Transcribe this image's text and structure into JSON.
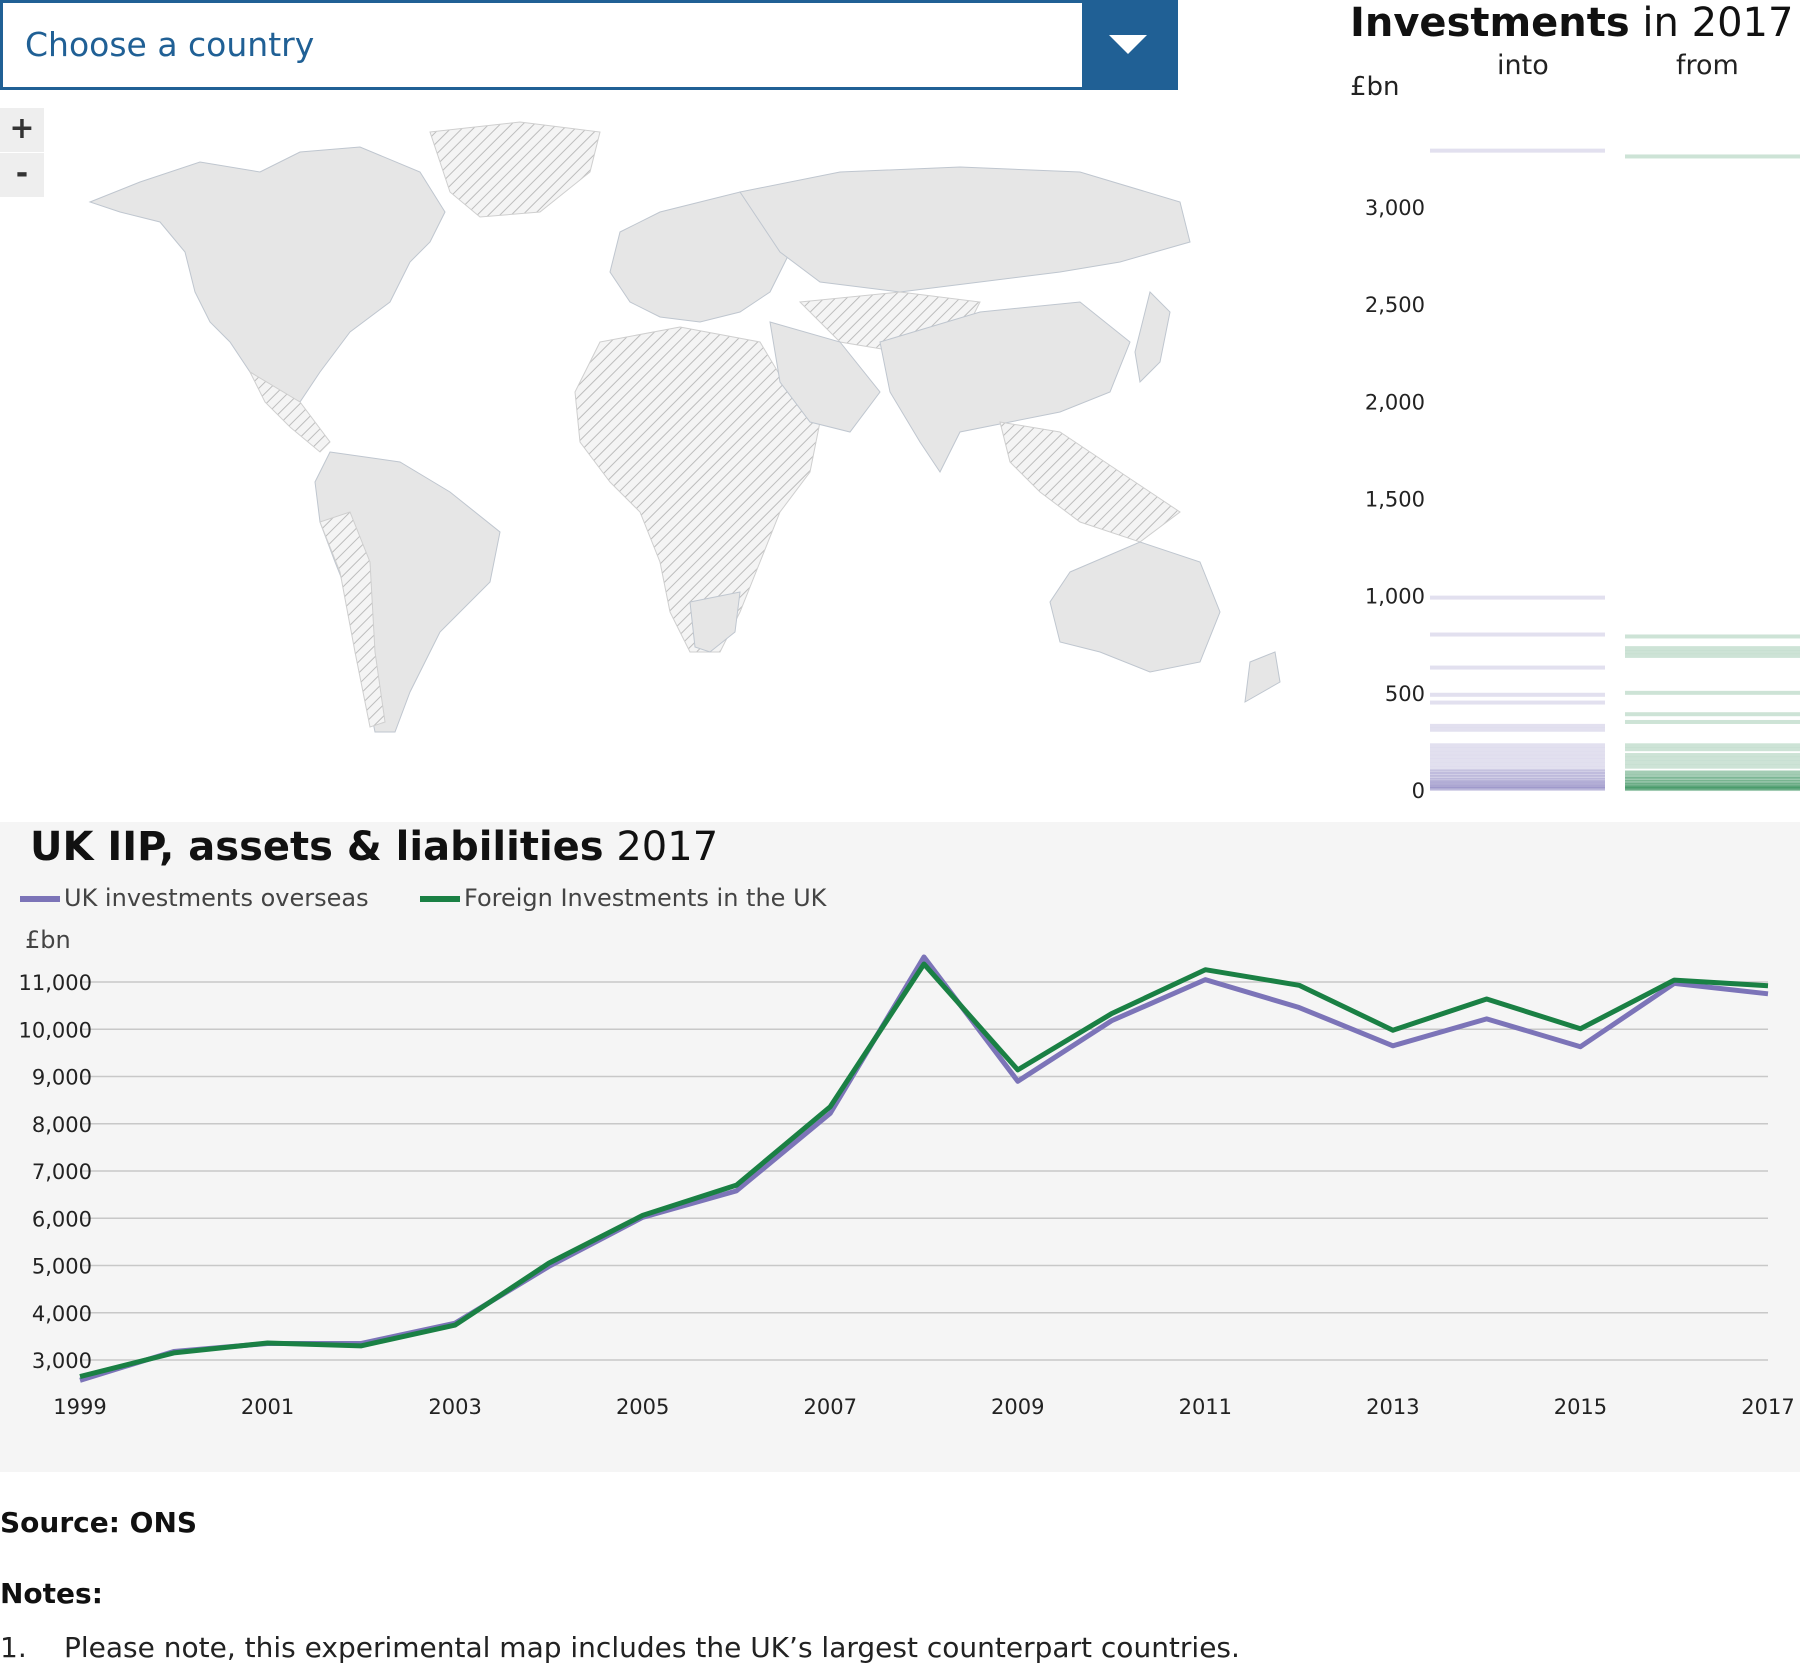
{
  "selector": {
    "label": "Choose a country"
  },
  "zoom": {
    "in_label": "+",
    "out_label": "-"
  },
  "investments": {
    "title_bold": "Investments",
    "title_year": " in 2017",
    "unit": "£bn",
    "into_label": "into",
    "from_label": "from",
    "y_ticks": [
      "0",
      "500",
      "1,000",
      "1,500",
      "2,000",
      "2,500",
      "3,000"
    ],
    "into_values": [
      3290,
      990,
      800,
      630,
      490,
      450,
      330,
      310,
      230,
      210,
      190,
      170,
      150,
      130,
      110,
      95,
      80,
      65,
      50,
      40,
      30,
      20,
      12,
      6
    ],
    "from_values": [
      3260,
      790,
      730,
      710,
      690,
      500,
      390,
      350,
      230,
      210,
      180,
      160,
      140,
      120,
      90,
      70,
      55,
      40,
      28,
      18,
      10,
      5
    ],
    "into_color": "#7c74b8",
    "from_color": "#1a8044"
  },
  "iip": {
    "title_bold": "UK IIP, assets & liabilities",
    "title_year": " 2017",
    "unit": "£bn"
  },
  "chart_data": {
    "type": "line",
    "x": [
      1999,
      2000,
      2001,
      2002,
      2003,
      2004,
      2005,
      2006,
      2007,
      2008,
      2009,
      2010,
      2011,
      2012,
      2013,
      2014,
      2015,
      2016,
      2017
    ],
    "x_ticks": [
      "1999",
      "2001",
      "2003",
      "2005",
      "2007",
      "2009",
      "2011",
      "2013",
      "2015",
      "2017"
    ],
    "y_ticks": [
      "3,000",
      "4,000",
      "5,000",
      "6,000",
      "7,000",
      "8,000",
      "9,000",
      "10,000",
      "11,000"
    ],
    "ylim": [
      2500,
      11900
    ],
    "grid": true,
    "legend": "top-left",
    "series": [
      {
        "name": "UK investments overseas",
        "color": "#7c74b8",
        "values": [
          2570,
          3180,
          3350,
          3350,
          3780,
          4980,
          6020,
          6580,
          8220,
          11530,
          8900,
          10180,
          11050,
          10460,
          9650,
          10220,
          9630,
          10970,
          10750
        ]
      },
      {
        "name": "Foreign Investments in the UK",
        "color": "#1a8044",
        "values": [
          2650,
          3150,
          3360,
          3300,
          3740,
          5050,
          6060,
          6700,
          8360,
          11380,
          9140,
          10330,
          11260,
          10930,
          9980,
          10640,
          10010,
          11040,
          10920
        ]
      }
    ]
  },
  "footer": {
    "source": "Source: ONS",
    "notes_title": "Notes:",
    "note_number": "1.",
    "note_text": "Please note, this experimental map includes the UK’s largest counterpart countries."
  }
}
